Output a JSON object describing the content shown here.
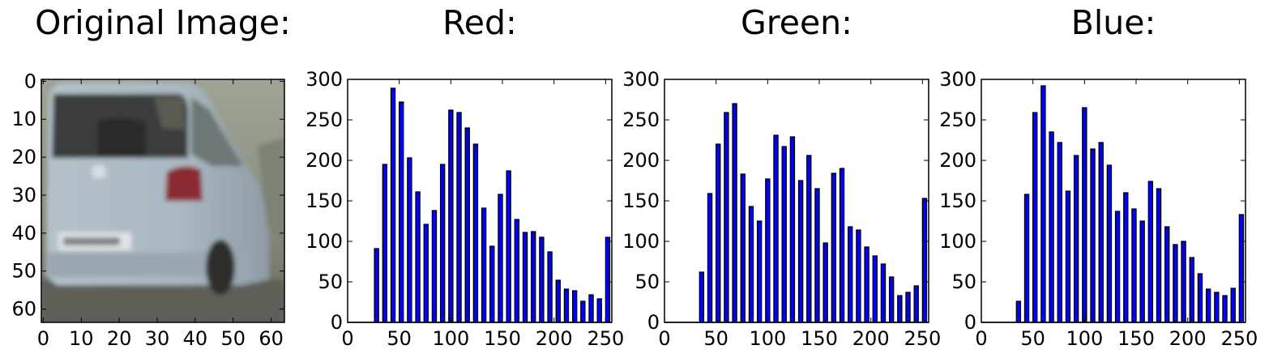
{
  "panels": {
    "original": {
      "title": "Original Image:"
    },
    "red": {
      "title": "Red:"
    },
    "green": {
      "title": "Green:"
    },
    "blue": {
      "title": "Blue:"
    }
  },
  "image_panel": {
    "xticks": [
      0,
      10,
      20,
      30,
      40,
      50,
      60
    ],
    "yticks": [
      0,
      10,
      20,
      30,
      40,
      50,
      60
    ],
    "xlim": [
      -0.5,
      63.5
    ],
    "ylim": [
      63.5,
      -0.5
    ],
    "description_colors": {
      "car": "#a9b9c4",
      "background": "#8b8f80",
      "taillight": "#8c2a30"
    }
  },
  "chart_data": [
    {
      "type": "bar",
      "title": "Red:",
      "bar_color": "#0000ff",
      "edge_color": "#000000",
      "xlim": [
        0,
        256
      ],
      "ylim": [
        0,
        300
      ],
      "xticks": [
        0,
        50,
        100,
        150,
        200,
        250
      ],
      "yticks": [
        0,
        50,
        100,
        150,
        200,
        250,
        300
      ],
      "bin_width": 8,
      "bin_starts": [
        0,
        8,
        16,
        24,
        32,
        40,
        48,
        56,
        64,
        72,
        80,
        88,
        96,
        104,
        112,
        120,
        128,
        136,
        144,
        152,
        160,
        168,
        176,
        184,
        192,
        200,
        208,
        216,
        224,
        232,
        240,
        248
      ],
      "values": [
        0,
        0,
        0,
        91,
        195,
        289,
        272,
        203,
        161,
        121,
        138,
        195,
        262,
        259,
        240,
        220,
        141,
        94,
        158,
        187,
        127,
        111,
        112,
        105,
        87,
        52,
        41,
        39,
        26,
        34,
        29,
        105
      ]
    },
    {
      "type": "bar",
      "title": "Green:",
      "bar_color": "#0000ff",
      "edge_color": "#000000",
      "xlim": [
        0,
        256
      ],
      "ylim": [
        0,
        300
      ],
      "xticks": [
        0,
        50,
        100,
        150,
        200,
        250
      ],
      "yticks": [
        0,
        50,
        100,
        150,
        200,
        250,
        300
      ],
      "bin_width": 8,
      "bin_starts": [
        0,
        8,
        16,
        24,
        32,
        40,
        48,
        56,
        64,
        72,
        80,
        88,
        96,
        104,
        112,
        120,
        128,
        136,
        144,
        152,
        160,
        168,
        176,
        184,
        192,
        200,
        208,
        216,
        224,
        232,
        240,
        248
      ],
      "values": [
        0,
        0,
        0,
        0,
        62,
        159,
        220,
        259,
        270,
        183,
        143,
        125,
        177,
        231,
        217,
        229,
        175,
        206,
        165,
        98,
        184,
        190,
        118,
        114,
        93,
        82,
        72,
        56,
        33,
        37,
        45,
        153
      ]
    },
    {
      "type": "bar",
      "title": "Blue:",
      "bar_color": "#0000ff",
      "edge_color": "#000000",
      "xlim": [
        0,
        256
      ],
      "ylim": [
        0,
        300
      ],
      "xticks": [
        0,
        50,
        100,
        150,
        200,
        250
      ],
      "yticks": [
        0,
        50,
        100,
        150,
        200,
        250,
        300
      ],
      "bin_width": 8,
      "bin_starts": [
        0,
        8,
        16,
        24,
        32,
        40,
        48,
        56,
        64,
        72,
        80,
        88,
        96,
        104,
        112,
        120,
        128,
        136,
        144,
        152,
        160,
        168,
        176,
        184,
        192,
        200,
        208,
        216,
        224,
        232,
        240,
        248
      ],
      "values": [
        0,
        0,
        0,
        0,
        26,
        158,
        259,
        292,
        235,
        222,
        162,
        206,
        265,
        214,
        222,
        194,
        137,
        160,
        140,
        125,
        174,
        165,
        118,
        96,
        100,
        80,
        60,
        41,
        37,
        33,
        42,
        133
      ]
    }
  ]
}
